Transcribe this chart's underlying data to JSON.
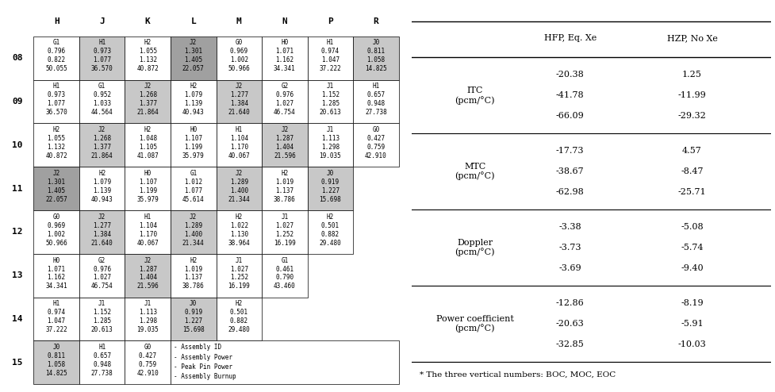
{
  "col_headers": [
    "H",
    "J",
    "K",
    "L",
    "M",
    "N",
    "P",
    "R"
  ],
  "row_headers": [
    "08",
    "09",
    "10",
    "11",
    "12",
    "13",
    "14",
    "15"
  ],
  "cells": {
    "08": {
      "H": {
        "id": "G1",
        "ap": 0.796,
        "pp": 0.822,
        "bu": 50.055,
        "color": "white"
      },
      "J": {
        "id": "H1",
        "ap": 0.973,
        "pp": 1.077,
        "bu": 36.57,
        "color": "lightgray"
      },
      "K": {
        "id": "H2",
        "ap": 1.055,
        "pp": 1.132,
        "bu": 40.872,
        "color": "white"
      },
      "L": {
        "id": "J2",
        "ap": 1.301,
        "pp": 1.405,
        "bu": 22.057,
        "color": "gray"
      },
      "M": {
        "id": "G0",
        "ap": 0.969,
        "pp": 1.002,
        "bu": 50.966,
        "color": "white"
      },
      "N": {
        "id": "H0",
        "ap": 1.071,
        "pp": 1.162,
        "bu": 34.341,
        "color": "white"
      },
      "P": {
        "id": "H1",
        "ap": 0.974,
        "pp": 1.047,
        "bu": 37.222,
        "color": "white"
      },
      "R": {
        "id": "J0",
        "ap": 0.811,
        "pp": 1.058,
        "bu": 14.825,
        "color": "lightgray"
      }
    },
    "09": {
      "H": {
        "id": "H1",
        "ap": 0.973,
        "pp": 1.077,
        "bu": 36.57,
        "color": "white"
      },
      "J": {
        "id": "G1",
        "ap": 0.952,
        "pp": 1.033,
        "bu": 44.564,
        "color": "white"
      },
      "K": {
        "id": "J2",
        "ap": 1.268,
        "pp": 1.377,
        "bu": 21.864,
        "color": "lightgray"
      },
      "L": {
        "id": "H2",
        "ap": 1.079,
        "pp": 1.139,
        "bu": 40.943,
        "color": "white"
      },
      "M": {
        "id": "J2",
        "ap": 1.277,
        "pp": 1.384,
        "bu": 21.64,
        "color": "lightgray"
      },
      "N": {
        "id": "G2",
        "ap": 0.976,
        "pp": 1.027,
        "bu": 46.754,
        "color": "white"
      },
      "P": {
        "id": "J1",
        "ap": 1.152,
        "pp": 1.285,
        "bu": 20.613,
        "color": "white"
      },
      "R": {
        "id": "H1",
        "ap": 0.657,
        "pp": 0.948,
        "bu": 27.738,
        "color": "white"
      }
    },
    "10": {
      "H": {
        "id": "H2",
        "ap": 1.055,
        "pp": 1.132,
        "bu": 40.872,
        "color": "white"
      },
      "J": {
        "id": "J2",
        "ap": 1.268,
        "pp": 1.377,
        "bu": 21.864,
        "color": "lightgray"
      },
      "K": {
        "id": "H2",
        "ap": 1.048,
        "pp": 1.105,
        "bu": 41.087,
        "color": "white"
      },
      "L": {
        "id": "H0",
        "ap": 1.107,
        "pp": 1.199,
        "bu": 35.979,
        "color": "white"
      },
      "M": {
        "id": "H1",
        "ap": 1.104,
        "pp": 1.17,
        "bu": 40.067,
        "color": "white"
      },
      "N": {
        "id": "J2",
        "ap": 1.287,
        "pp": 1.404,
        "bu": 21.596,
        "color": "lightgray"
      },
      "P": {
        "id": "J1",
        "ap": 1.113,
        "pp": 1.298,
        "bu": 19.035,
        "color": "white"
      },
      "R": {
        "id": "G0",
        "ap": 0.427,
        "pp": 0.759,
        "bu": 42.91,
        "color": "white"
      }
    },
    "11": {
      "H": {
        "id": "J2",
        "ap": 1.301,
        "pp": 1.405,
        "bu": 22.057,
        "color": "gray"
      },
      "J": {
        "id": "H2",
        "ap": 1.079,
        "pp": 1.139,
        "bu": 40.943,
        "color": "white"
      },
      "K": {
        "id": "H0",
        "ap": 1.107,
        "pp": 1.199,
        "bu": 35.979,
        "color": "white"
      },
      "L": {
        "id": "G1",
        "ap": 1.012,
        "pp": 1.077,
        "bu": 45.614,
        "color": "white"
      },
      "M": {
        "id": "J2",
        "ap": 1.289,
        "pp": 1.4,
        "bu": 21.344,
        "color": "lightgray"
      },
      "N": {
        "id": "H2",
        "ap": 1.019,
        "pp": 1.137,
        "bu": 38.786,
        "color": "white"
      },
      "P": {
        "id": "J0",
        "ap": 0.919,
        "pp": 1.227,
        "bu": 15.698,
        "color": "lightgray"
      },
      "R": null
    },
    "12": {
      "H": {
        "id": "G0",
        "ap": 0.969,
        "pp": 1.002,
        "bu": 50.966,
        "color": "white"
      },
      "J": {
        "id": "J2",
        "ap": 1.277,
        "pp": 1.384,
        "bu": 21.64,
        "color": "lightgray"
      },
      "K": {
        "id": "H1",
        "ap": 1.104,
        "pp": 1.17,
        "bu": 40.067,
        "color": "white"
      },
      "L": {
        "id": "J2",
        "ap": 1.289,
        "pp": 1.4,
        "bu": 21.344,
        "color": "lightgray"
      },
      "M": {
        "id": "H2",
        "ap": 1.022,
        "pp": 1.13,
        "bu": 38.964,
        "color": "white"
      },
      "N": {
        "id": "J1",
        "ap": 1.027,
        "pp": 1.252,
        "bu": 16.199,
        "color": "white"
      },
      "P": {
        "id": "H2",
        "ap": 0.501,
        "pp": 0.882,
        "bu": 29.48,
        "color": "white"
      },
      "R": null
    },
    "13": {
      "H": {
        "id": "H0",
        "ap": 1.071,
        "pp": 1.162,
        "bu": 34.341,
        "color": "white"
      },
      "J": {
        "id": "G2",
        "ap": 0.976,
        "pp": 1.027,
        "bu": 46.754,
        "color": "white"
      },
      "K": {
        "id": "J2",
        "ap": 1.287,
        "pp": 1.404,
        "bu": 21.596,
        "color": "lightgray"
      },
      "L": {
        "id": "H2",
        "ap": 1.019,
        "pp": 1.137,
        "bu": 38.786,
        "color": "white"
      },
      "M": {
        "id": "J1",
        "ap": 1.027,
        "pp": 1.252,
        "bu": 16.199,
        "color": "white"
      },
      "N": {
        "id": "G1",
        "ap": 0.461,
        "pp": 0.79,
        "bu": 43.46,
        "color": "white"
      },
      "P": null,
      "R": null
    },
    "14": {
      "H": {
        "id": "H1",
        "ap": 0.974,
        "pp": 1.047,
        "bu": 37.222,
        "color": "white"
      },
      "J": {
        "id": "J1",
        "ap": 1.152,
        "pp": 1.285,
        "bu": 20.613,
        "color": "white"
      },
      "K": {
        "id": "J1",
        "ap": 1.113,
        "pp": 1.298,
        "bu": 19.035,
        "color": "white"
      },
      "L": {
        "id": "J0",
        "ap": 0.919,
        "pp": 1.227,
        "bu": 15.698,
        "color": "lightgray"
      },
      "M": {
        "id": "H2",
        "ap": 0.501,
        "pp": 0.882,
        "bu": 29.48,
        "color": "white"
      },
      "N": null,
      "P": null,
      "R": null
    },
    "15": {
      "H": {
        "id": "J0",
        "ap": 0.811,
        "pp": 1.058,
        "bu": 14.825,
        "color": "lightgray"
      },
      "J": {
        "id": "H1",
        "ap": 0.657,
        "pp": 0.948,
        "bu": 27.738,
        "color": "white"
      },
      "K": {
        "id": "G0",
        "ap": 0.427,
        "pp": 0.759,
        "bu": 42.91,
        "color": "white"
      },
      "L": null,
      "M": null,
      "N": null,
      "P": null,
      "R": null
    }
  },
  "legend_text": [
    "- Assembly ID",
    "- Assembly Power",
    "- Peak Pin Power",
    "- Assembly Burnup"
  ],
  "right_table": {
    "col1_header": "HFP, Eq. Xe",
    "col2_header": "HZP, No Xe",
    "rows": [
      {
        "label1": "ITC",
        "label2": "(pcm/°C)",
        "v1": [
          "-20.38",
          "-41.78",
          "-66.09"
        ],
        "v2": [
          "1.25",
          "-11.99",
          "-29.32"
        ]
      },
      {
        "label1": "MTC",
        "label2": "(pcm/°C)",
        "v1": [
          "-17.73",
          "-38.67",
          "-62.98"
        ],
        "v2": [
          "4.57",
          "-8.47",
          "-25.71"
        ]
      },
      {
        "label1": "Doppler",
        "label2": "(pcm/°C)",
        "v1": [
          "-3.38",
          "-3.73",
          "-3.69"
        ],
        "v2": [
          "-5.08",
          "-5.74",
          "-9.40"
        ]
      },
      {
        "label1": "Power coefficient",
        "label2": "(pcm/°C)",
        "v1": [
          "-12.86",
          "-20.63",
          "-32.85"
        ],
        "v2": [
          "-8.19",
          "-5.91",
          "-10.03"
        ]
      }
    ],
    "footnote": "* The three vertical numbers: BOC, MOC, EOC"
  }
}
